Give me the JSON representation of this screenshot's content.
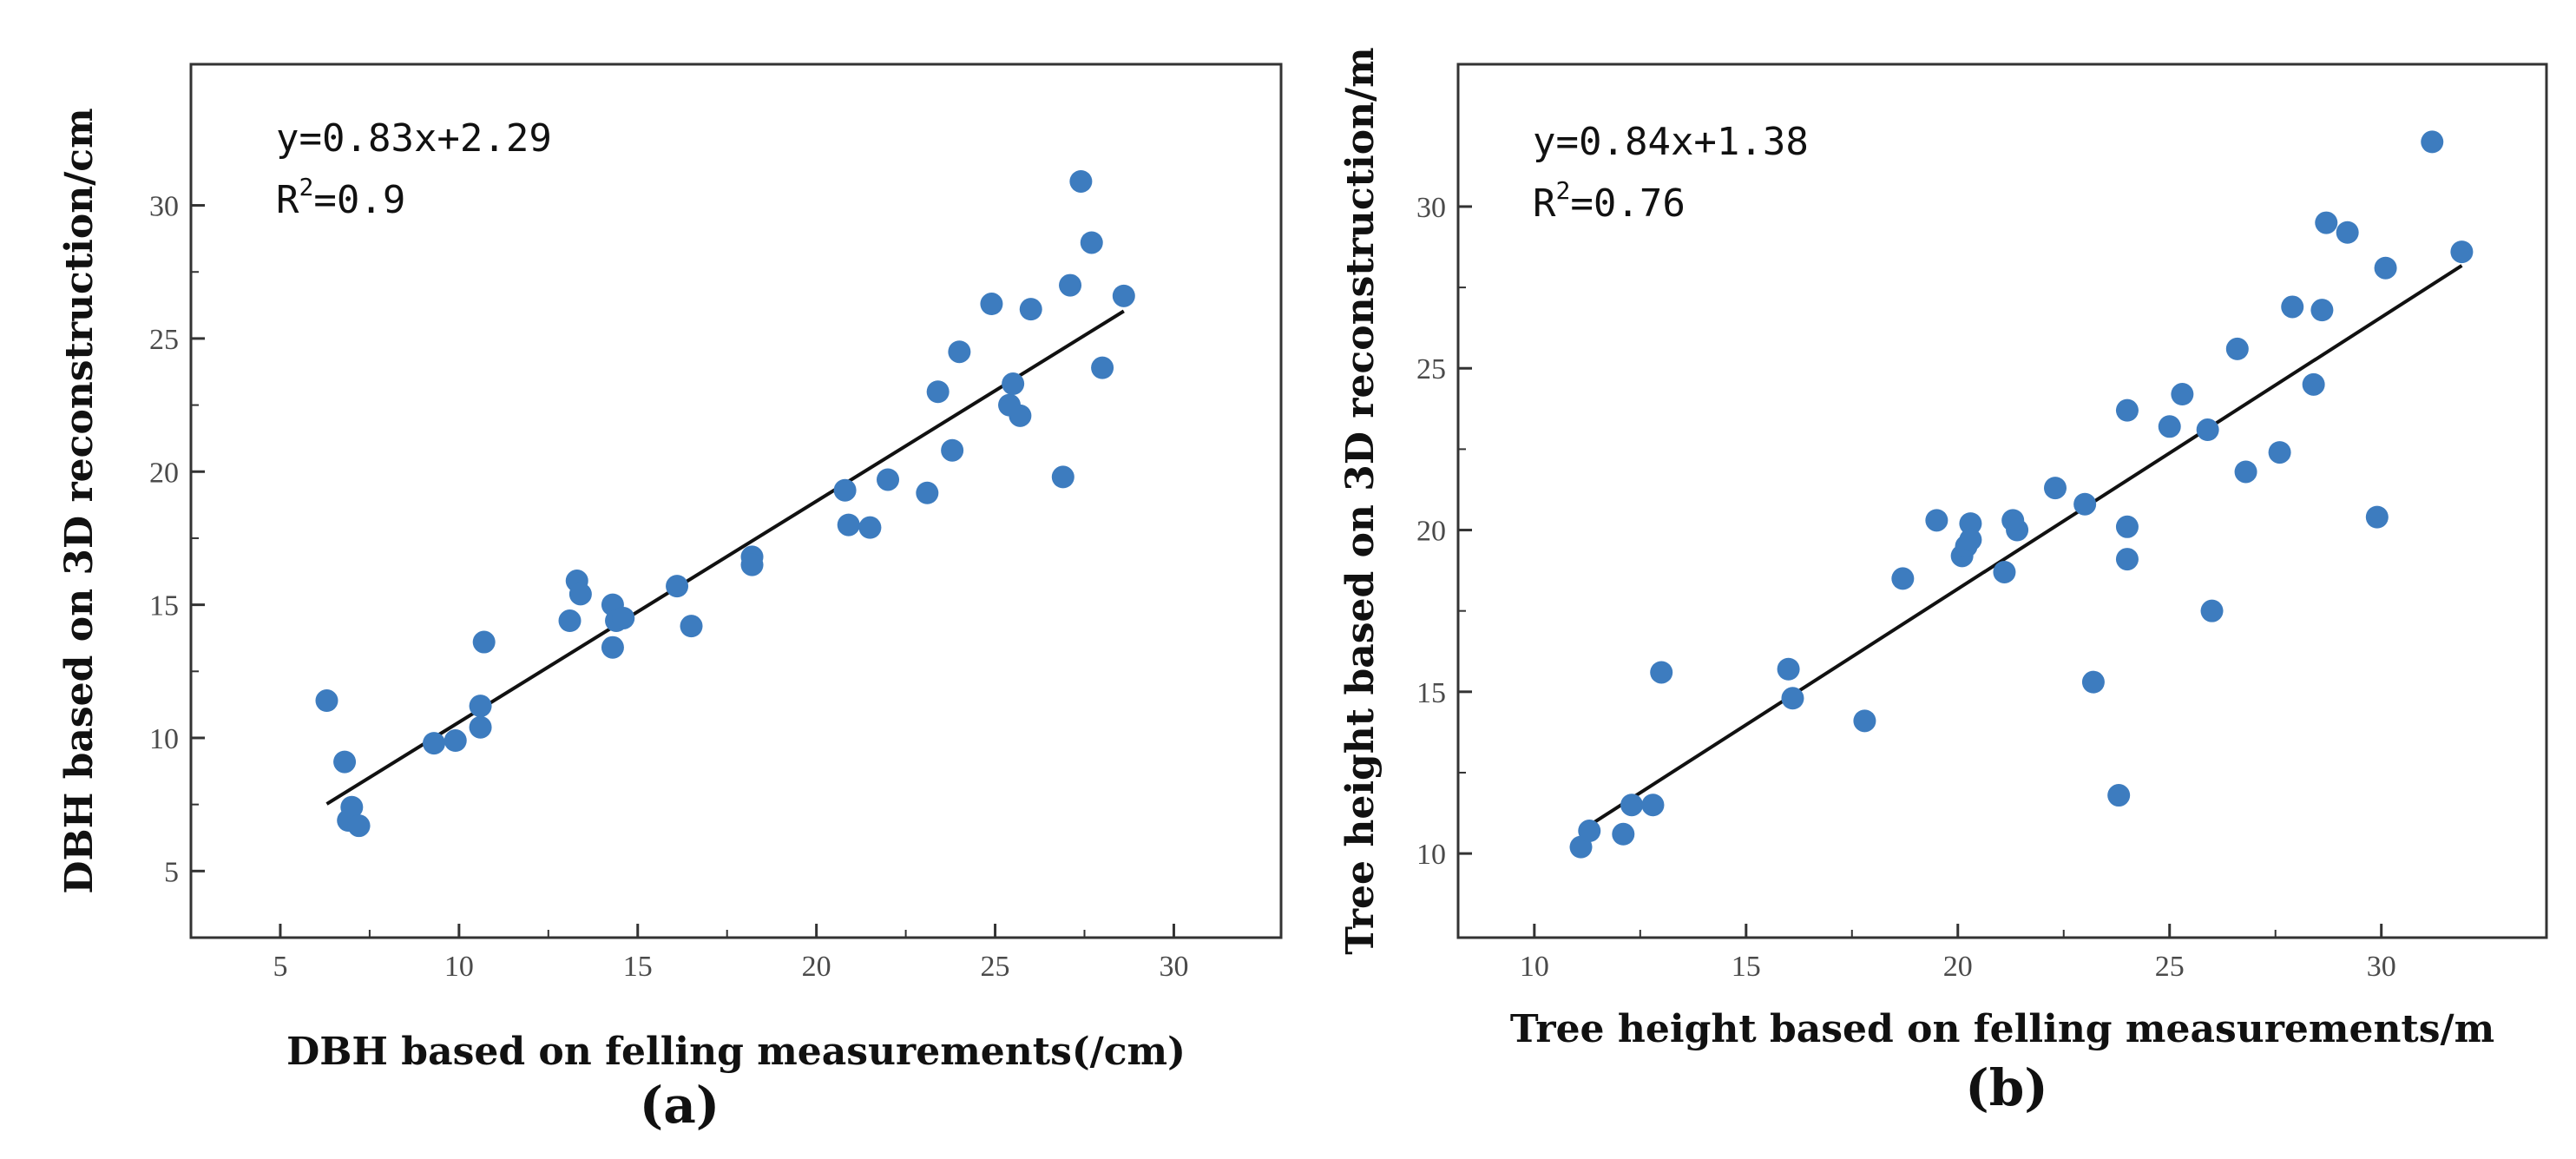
{
  "figure": {
    "background": "#ffffff",
    "point_color": "#3d7cbf",
    "line_color": "#111111"
  },
  "chart_data": [
    {
      "id": "a",
      "type": "scatter",
      "panel_label": "(a)",
      "xlabel": "DBH based on felling measurements(/cm)",
      "ylabel": "DBH based on 3D reconstruction/cm",
      "xlim": [
        2.5,
        33.0
      ],
      "ylim": [
        2.5,
        35.3
      ],
      "xticks": [
        5,
        10,
        15,
        20,
        25,
        30
      ],
      "yticks": [
        5,
        10,
        15,
        20,
        25,
        30
      ],
      "equation": "y=0.83x+2.29",
      "r2_label": "R",
      "r2_value": "=0.9",
      "fit": {
        "slope": 0.83,
        "intercept": 2.29,
        "x_range": [
          6.3,
          28.6
        ]
      },
      "points": [
        [
          6.3,
          11.4
        ],
        [
          6.8,
          9.1
        ],
        [
          6.9,
          6.9
        ],
        [
          7.0,
          7.4
        ],
        [
          7.2,
          6.7
        ],
        [
          9.3,
          9.8
        ],
        [
          9.9,
          9.9
        ],
        [
          10.6,
          11.2
        ],
        [
          10.6,
          10.4
        ],
        [
          10.7,
          13.6
        ],
        [
          13.1,
          14.4
        ],
        [
          13.3,
          15.9
        ],
        [
          13.4,
          15.4
        ],
        [
          14.3,
          15.0
        ],
        [
          14.3,
          13.4
        ],
        [
          14.4,
          14.4
        ],
        [
          14.6,
          14.5
        ],
        [
          16.1,
          15.7
        ],
        [
          16.5,
          14.2
        ],
        [
          18.2,
          16.8
        ],
        [
          18.2,
          16.5
        ],
        [
          20.8,
          19.3
        ],
        [
          20.9,
          18.0
        ],
        [
          21.5,
          17.9
        ],
        [
          22.0,
          19.7
        ],
        [
          23.1,
          19.2
        ],
        [
          23.4,
          23.0
        ],
        [
          23.8,
          20.8
        ],
        [
          24.0,
          24.5
        ],
        [
          24.9,
          26.3
        ],
        [
          25.4,
          22.5
        ],
        [
          25.5,
          23.3
        ],
        [
          25.7,
          22.1
        ],
        [
          26.0,
          26.1
        ],
        [
          26.9,
          19.8
        ],
        [
          27.1,
          27.0
        ],
        [
          27.4,
          30.9
        ],
        [
          27.7,
          28.6
        ],
        [
          28.0,
          23.9
        ],
        [
          28.6,
          26.6
        ]
      ]
    },
    {
      "id": "b",
      "type": "scatter",
      "panel_label": "(b)",
      "xlabel": "Tree height based on felling measurements/m",
      "ylabel": "Tree height based on 3D reconstruction/m",
      "xlim": [
        8.2,
        33.9
      ],
      "ylim": [
        7.4,
        34.4
      ],
      "xticks": [
        10,
        15,
        20,
        25,
        30
      ],
      "yticks": [
        10,
        15,
        20,
        25,
        30
      ],
      "equation": "y=0.84x+1.38",
      "r2_label": "R",
      "r2_value": "=0.76",
      "fit": {
        "slope": 0.84,
        "intercept": 1.38,
        "x_range": [
          11.2,
          31.9
        ]
      },
      "points": [
        [
          11.1,
          10.2
        ],
        [
          11.3,
          10.7
        ],
        [
          12.1,
          10.6
        ],
        [
          12.3,
          11.5
        ],
        [
          12.8,
          11.5
        ],
        [
          13.0,
          15.6
        ],
        [
          16.0,
          15.7
        ],
        [
          16.1,
          14.8
        ],
        [
          17.8,
          14.1
        ],
        [
          18.7,
          18.5
        ],
        [
          19.5,
          20.3
        ],
        [
          20.1,
          19.2
        ],
        [
          20.2,
          19.5
        ],
        [
          20.3,
          20.2
        ],
        [
          20.3,
          19.7
        ],
        [
          21.1,
          18.7
        ],
        [
          21.3,
          20.3
        ],
        [
          21.4,
          20.0
        ],
        [
          22.3,
          21.3
        ],
        [
          23.0,
          20.8
        ],
        [
          23.2,
          15.3
        ],
        [
          23.8,
          11.8
        ],
        [
          24.0,
          23.7
        ],
        [
          24.0,
          20.1
        ],
        [
          24.0,
          19.1
        ],
        [
          25.0,
          23.2
        ],
        [
          25.3,
          24.2
        ],
        [
          25.9,
          23.1
        ],
        [
          26.0,
          17.5
        ],
        [
          26.6,
          25.6
        ],
        [
          26.8,
          21.8
        ],
        [
          27.6,
          22.4
        ],
        [
          27.9,
          26.9
        ],
        [
          28.4,
          24.5
        ],
        [
          28.6,
          26.8
        ],
        [
          28.7,
          29.5
        ],
        [
          29.2,
          29.2
        ],
        [
          29.9,
          20.4
        ],
        [
          30.1,
          28.1
        ],
        [
          31.2,
          32.0
        ],
        [
          31.9,
          28.6
        ]
      ]
    }
  ]
}
